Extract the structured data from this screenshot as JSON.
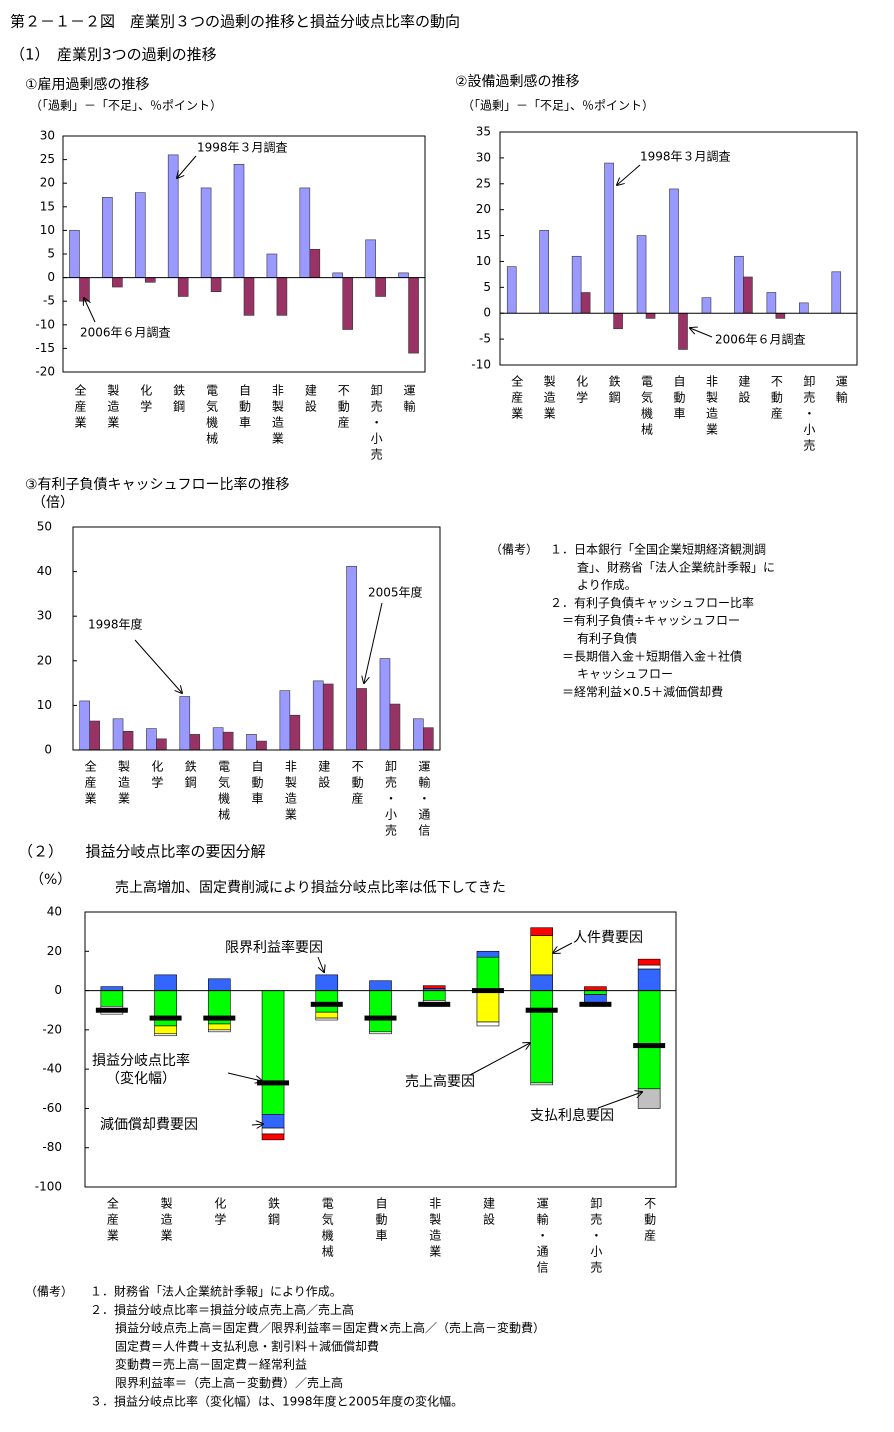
{
  "figure_title": "第２－１－２図　産業別３つの過剰の推移と損益分岐点比率の動向",
  "section1_title": "（1）　産業別3つの過剰の推移",
  "section2_title": "（２）　　損益分岐点比率の要因分解",
  "notes1": {
    "heading": "（備考）",
    "lines": [
      "１．日本銀行「全国企業短期経済観測調",
      "査」、財務省「法人企業統計季報」に",
      "より作成。",
      "２．有利子負債キャッシュフロー比率",
      "＝有利子負債÷キャッシュフロー",
      "有利子負債",
      "＝長期借入金＋短期借入金＋社債",
      "キャッシュフロー",
      "＝経常利益×0.5＋減価償却費"
    ]
  },
  "notes2": {
    "heading": "（備考）",
    "lines": [
      "１．財務省「法人企業統計季報」により作成。",
      "２．損益分岐点比率＝損益分岐点売上高／売上高",
      "損益分岐点売上高＝固定費／限界利益率＝固定費×売上高／（売上高－変動費）",
      "固定費＝人件費＋支払利息・割引料＋減価償却費",
      "変動費＝売上高－固定費－経常利益",
      "限界利益率＝（売上高－変動費）／売上高",
      "３．損益分岐点比率（変化幅）は、1998年度と2005年度の変化幅。"
    ]
  },
  "chart_data": [
    {
      "type": "bar",
      "title": "①雇用過剰感の推移",
      "subtitle": "（「過剰」－「不足」、％ポイント）",
      "categories": [
        "全産業",
        "製造業",
        "化学",
        "鉄鋼",
        "電気機械",
        "自動車",
        "非製造業",
        "建設",
        "不動産",
        "卸売・小売",
        "運輸"
      ],
      "series": [
        {
          "name": "1998年３月調査",
          "color": "#9999ff",
          "values": [
            10,
            17,
            18,
            26,
            19,
            24,
            5,
            19,
            1,
            8,
            1
          ]
        },
        {
          "name": "2006年６月調査",
          "color": "#993366",
          "values": [
            -5,
            -2,
            -1,
            -4,
            -3,
            -8,
            -8,
            6,
            -11,
            -4,
            -16
          ]
        }
      ],
      "ylim": [
        -20,
        30
      ],
      "yticks": [
        -20,
        -15,
        -10,
        -5,
        0,
        5,
        10,
        15,
        20,
        25,
        30
      ],
      "grid": false
    },
    {
      "type": "bar",
      "title": "②設備過剰感の推移",
      "subtitle": "（「過剰」－「不足」、％ポイント）",
      "categories": [
        "全産業",
        "製造業",
        "化学",
        "鉄鋼",
        "電気機械",
        "自動車",
        "非製造業",
        "建設",
        "不動産",
        "卸売・小売",
        "運輸"
      ],
      "series": [
        {
          "name": "1998年３月調査",
          "color": "#9999ff",
          "values": [
            9,
            16,
            11,
            29,
            15,
            24,
            3,
            11,
            4,
            2,
            8
          ]
        },
        {
          "name": "2006年６月調査",
          "color": "#993366",
          "values": [
            0,
            0,
            4,
            -3,
            -1,
            -7,
            0,
            7,
            -1,
            0,
            0
          ]
        }
      ],
      "ylim": [
        -10,
        35
      ],
      "yticks": [
        -10,
        -5,
        0,
        5,
        10,
        15,
        20,
        25,
        30,
        35
      ],
      "grid": false
    },
    {
      "type": "bar",
      "title": "③有利子負債キャッシュフロー比率の推移",
      "y_label": "（倍）",
      "categories": [
        "全産業",
        "製造業",
        "化学",
        "鉄鋼",
        "電気機械",
        "自動車",
        "非製造業",
        "建設",
        "不動産",
        "卸売・小売",
        "運輸・通信"
      ],
      "series": [
        {
          "name": "1998年度",
          "color": "#9999ff",
          "values": [
            11,
            7,
            4.8,
            12,
            5,
            3.5,
            13.3,
            15.5,
            41.2,
            20.5,
            7
          ]
        },
        {
          "name": "2005年度",
          "color": "#993366",
          "values": [
            6.5,
            4.2,
            2.5,
            3.5,
            4,
            2,
            7.8,
            14.8,
            13.8,
            10.3,
            5
          ]
        }
      ],
      "ylim": [
        0,
        50
      ],
      "yticks": [
        0,
        10,
        20,
        30,
        40,
        50
      ],
      "grid": false
    },
    {
      "type": "stacked_bar",
      "title": "売上高増加、固定費削減により損益分岐点比率は低下してきた",
      "y_label": "（%）",
      "categories": [
        "全産業",
        "製造業",
        "化学",
        "鉄鋼",
        "電気機械",
        "自動車",
        "非製造業",
        "建設",
        "運輸・通信",
        "卸売・小売",
        "不動産"
      ],
      "series": [
        {
          "name": "売上高要因",
          "color": "#00ff00",
          "values": [
            -8,
            -18,
            -17,
            -63,
            -11,
            -21,
            -5,
            17,
            -47,
            -2,
            -50
          ]
        },
        {
          "name": "限界利益率要因",
          "color": "#3366ff",
          "values": [
            2,
            8,
            6,
            -7,
            8,
            5,
            1,
            3,
            8,
            -4,
            11
          ]
        },
        {
          "name": "人件費要因",
          "color": "#ffff00",
          "values": [
            0,
            -4,
            -3,
            0,
            -3,
            0,
            0,
            -16,
            20,
            0,
            0
          ]
        },
        {
          "name": "減価償却費要因",
          "color": "#ffffff",
          "values": [
            -4,
            -1,
            -1,
            -3,
            -1,
            -1,
            -3,
            -2,
            -1,
            -2,
            2
          ]
        },
        {
          "color": "#ff0000",
          "values": [
            0,
            0,
            0,
            -3,
            0,
            0,
            1.5,
            0,
            4,
            2,
            3
          ]
        },
        {
          "name": "支払利息要因",
          "color": "#c0c0c0",
          "values": [
            0,
            0,
            0,
            0,
            0,
            0,
            0,
            0,
            0,
            0,
            -10
          ]
        }
      ],
      "marker_series": {
        "name": "損益分岐点比率（変化幅）",
        "color": "#000000",
        "values": [
          -10,
          -14,
          -14,
          -47,
          -7,
          -14,
          -7,
          0,
          -10,
          -7,
          -28
        ]
      },
      "ylim": [
        -100,
        40
      ],
      "yticks": [
        -100,
        -80,
        -60,
        -40,
        -20,
        0,
        20,
        40
      ],
      "grid": false
    }
  ]
}
